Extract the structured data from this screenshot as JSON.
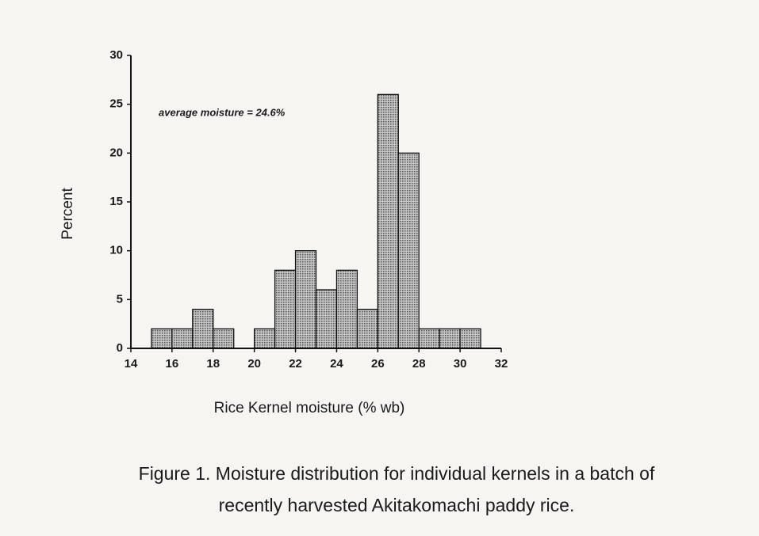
{
  "chart_data": {
    "type": "histogram",
    "bins": [
      15,
      16,
      17,
      18,
      19,
      20,
      21,
      22,
      23,
      24,
      25,
      26,
      27,
      28,
      29,
      30,
      31
    ],
    "values": [
      2,
      2,
      4,
      2,
      0,
      2,
      8,
      10,
      6,
      8,
      4,
      26,
      20,
      2,
      2,
      2
    ],
    "color": "#a3a3a3",
    "xlim": [
      14,
      32
    ],
    "xticks": [
      14,
      16,
      18,
      20,
      22,
      24,
      26,
      28,
      30,
      32
    ],
    "ylim": [
      0,
      30
    ],
    "yticks": [
      0,
      5,
      10,
      15,
      20,
      25,
      30
    ],
    "x_label": "Rice Kernel moisture (% wb)",
    "y_label": "Percent",
    "annotation": "average moisture = 24.6%",
    "caption": [
      "Figure 1. Moisture distribution for individual kernels in a batch of",
      "recently harvested Akitakomachi paddy rice."
    ]
  }
}
